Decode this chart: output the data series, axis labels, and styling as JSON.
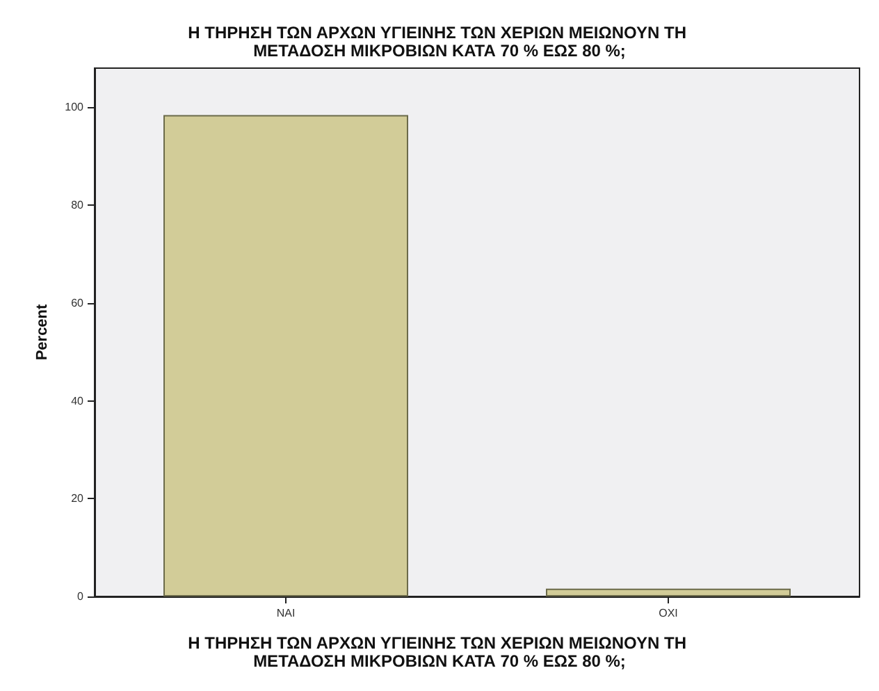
{
  "chart_data": {
    "type": "bar",
    "title": "Η ΤΗΡΗΣΗ ΤΩΝ ΑΡΧΩΝ ΥΓΙΕΙΝΗΣ ΤΩΝ ΧΕΡΙΩΝ ΜΕΙΩΝΟΥΝ ΤΗ ΜΕΤΑΔΟΣΗ ΜΙΚΡΟΒΙΩΝ ΚΑΤΑ 70 % ΕΩΣ 80 %;",
    "xlabel": "Η ΤΗΡΗΣΗ ΤΩΝ ΑΡΧΩΝ ΥΓΙΕΙΝΗΣ ΤΩΝ ΧΕΡΙΩΝ ΜΕΙΩΝΟΥΝ ΤΗ ΜΕΤΑΔΟΣΗ ΜΙΚΡΟΒΙΩΝ ΚΑΤΑ 70 % ΕΩΣ 80 %;",
    "ylabel": "Percent",
    "categories": [
      "ΝΑΙ",
      "ΟΧΙ"
    ],
    "values": [
      98.4,
      1.6
    ],
    "color": "#d2cc98",
    "ylim": [
      0,
      108
    ],
    "yticks": [
      0,
      20,
      40,
      60,
      80,
      100
    ],
    "grid": false
  }
}
